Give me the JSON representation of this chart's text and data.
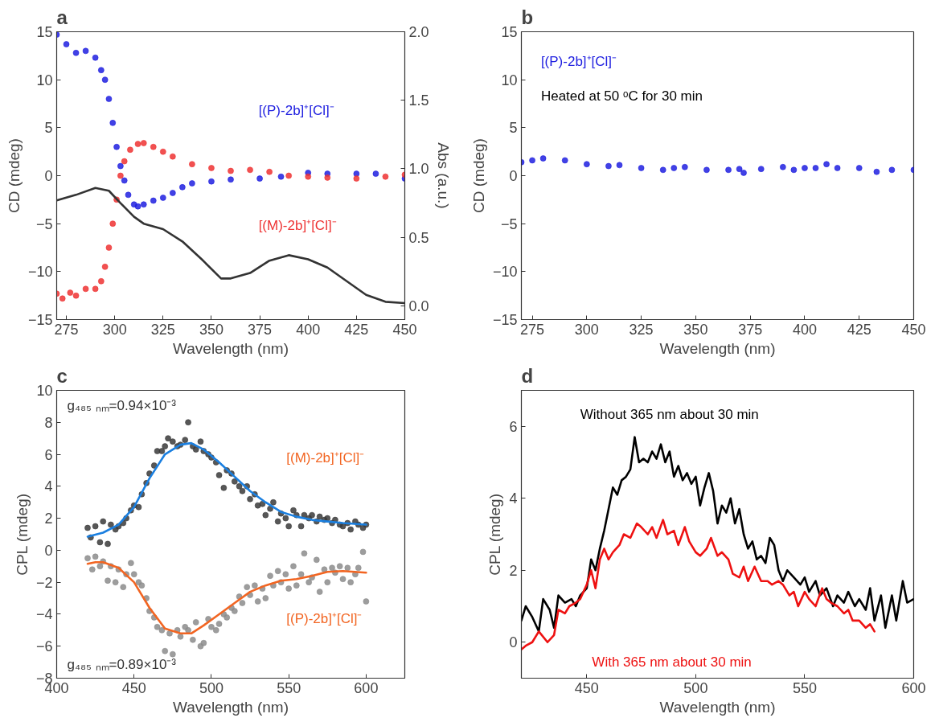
{
  "chart_data": [
    {
      "type": "scatter",
      "title": "a",
      "xlabel": "Wavelength (nm)",
      "ylabel": "CD (mdeg)",
      "y2label": "Abs (a.u.)",
      "xlim": [
        270,
        450
      ],
      "xticks": [
        275,
        300,
        325,
        350,
        375,
        400,
        425,
        450
      ],
      "ylim": [
        -15,
        15
      ],
      "yticks": [
        -15,
        -10,
        -5,
        0,
        5,
        10,
        15
      ],
      "y2lim": [
        -0.1,
        2.0
      ],
      "y2ticks": [
        {
          "value": 0,
          "label": "0.0"
        },
        0.5,
        {
          "value": 1,
          "label": "1.0"
        },
        1.5,
        {
          "value": 2,
          "label": "2.0"
        }
      ],
      "grid": false,
      "annotations": [
        "[(P)-2b]⁺[Cl]⁻",
        "[(M)-2b]⁺[Cl]⁻"
      ],
      "series": [
        {
          "color": "#2020e0",
          "marker": "circle",
          "x": [
            270,
            275,
            280,
            285,
            290,
            293,
            295,
            297,
            299,
            301,
            303,
            305,
            307,
            310,
            312,
            315,
            320,
            325,
            330,
            335,
            340,
            350,
            360,
            375,
            386,
            400,
            410,
            425,
            435,
            450
          ],
          "values": [
            14.7,
            13.7,
            12.8,
            13.0,
            12.3,
            11,
            10,
            8,
            5.5,
            3,
            1,
            -0.5,
            -2,
            -3,
            -3.2,
            -3,
            -2.6,
            -2.3,
            -1.8,
            -1.2,
            -0.8,
            -0.6,
            -0.4,
            -0.3,
            -0.1,
            0.3,
            0.2,
            0.2,
            0.2,
            -0.3
          ]
        },
        {
          "color": "#ee3333",
          "marker": "circle",
          "x": [
            270,
            273,
            277,
            280,
            285,
            290,
            293,
            295,
            297,
            299,
            301,
            303,
            305,
            308,
            312,
            315,
            320,
            325,
            330,
            340,
            350,
            360,
            370,
            380,
            390,
            400,
            410,
            425,
            440,
            450
          ],
          "values": [
            -12.3,
            -12.8,
            -12.2,
            -12.5,
            -11.8,
            -11.8,
            -11,
            -9.5,
            -7.5,
            -5,
            -2.5,
            0,
            1.5,
            2.7,
            3.3,
            3.4,
            3,
            2.5,
            2,
            1.2,
            0.8,
            0.5,
            0.6,
            0.4,
            0,
            -0.1,
            -0.2,
            -0.3,
            -0.1,
            0.1
          ]
        },
        {
          "type": "line",
          "axis": "y2",
          "color": "#333333",
          "x": [
            270,
            280,
            290,
            297,
            303,
            310,
            315,
            325,
            335,
            345,
            355,
            360,
            370,
            380,
            390,
            400,
            410,
            420,
            430,
            440,
            450
          ],
          "values": [
            0.77,
            0.81,
            0.86,
            0.84,
            0.75,
            0.65,
            0.6,
            0.56,
            0.47,
            0.34,
            0.2,
            0.2,
            0.24,
            0.33,
            0.37,
            0.34,
            0.28,
            0.18,
            0.08,
            0.03,
            0.02
          ]
        }
      ]
    },
    {
      "type": "scatter",
      "title": "b",
      "xlabel": "Wavelength (nm)",
      "ylabel": "CD (mdeg)",
      "xlim": [
        270,
        450
      ],
      "xticks": [
        275,
        300,
        325,
        350,
        375,
        400,
        425,
        450
      ],
      "ylim": [
        -15,
        15
      ],
      "yticks": [
        -15,
        -10,
        -5,
        0,
        5,
        10,
        15
      ],
      "marker": "circle",
      "grid": false,
      "annotations": [
        "[(P)-2b]⁺[Cl]⁻",
        "Heated at 50 ᵒC for 30 min"
      ],
      "series": [
        {
          "color": "#2020e0",
          "x": [
            270,
            275,
            280,
            290,
            300,
            310,
            315,
            325,
            335,
            340,
            345,
            355,
            365,
            370,
            372,
            380,
            390,
            395,
            400,
            405,
            410,
            415,
            425,
            433,
            440,
            450
          ],
          "values": [
            1.4,
            1.6,
            1.8,
            1.6,
            1.2,
            1.0,
            1.1,
            0.8,
            0.6,
            0.8,
            0.9,
            0.6,
            0.6,
            0.7,
            0.3,
            0.7,
            0.9,
            0.6,
            0.8,
            0.8,
            1.2,
            0.8,
            0.8,
            0.4,
            0.6,
            0.6
          ]
        }
      ]
    },
    {
      "type": "scatter",
      "title": "c",
      "xlabel": "Wavelength (nm)",
      "ylabel": "CPL (mdeg)",
      "xlim": [
        400,
        625
      ],
      "xticks": [
        400,
        450,
        500,
        550,
        600
      ],
      "ylim": [
        -8,
        10
      ],
      "yticks": [
        -8,
        -6,
        -4,
        -2,
        0,
        2,
        4,
        6,
        8,
        10
      ],
      "grid": false,
      "annotations": [
        "g₄₈₅ ₙₘ=0.94×10⁻³",
        "[(M)-2b]⁺[Cl]⁻",
        "[(P)-2b]⁺[Cl]⁻",
        "g₄₈₅ ₙₘ=0.89×10⁻³"
      ],
      "series": [
        {
          "color": "#3a3a3a",
          "marker": "circle",
          "x": [
            420,
            422,
            425,
            428,
            430,
            433,
            435,
            438,
            440,
            443,
            445,
            448,
            450,
            453,
            455,
            458,
            460,
            463,
            465,
            468,
            470,
            472,
            475,
            478,
            480,
            483,
            485,
            488,
            490,
            493,
            495,
            498,
            500,
            503,
            505,
            508,
            510,
            513,
            515,
            518,
            520,
            523,
            525,
            528,
            530,
            533,
            535,
            538,
            540,
            543,
            545,
            548,
            550,
            553,
            555,
            558,
            560,
            563,
            565,
            568,
            570,
            573,
            575,
            578,
            580,
            583,
            585,
            588,
            590,
            593,
            595,
            598,
            600
          ],
          "values": [
            1.4,
            0.8,
            1.5,
            0.5,
            1.8,
            0.4,
            1.6,
            1.3,
            1.5,
            1.7,
            2.0,
            2.5,
            2.8,
            2.7,
            3.5,
            4.2,
            4.8,
            5.3,
            6.2,
            6.2,
            6.5,
            7.0,
            6.8,
            6.5,
            6.6,
            6.9,
            8.0,
            6.5,
            6.3,
            6.8,
            6.2,
            6.0,
            5.8,
            5.5,
            4.7,
            3.9,
            5.0,
            4.8,
            4.3,
            4.0,
            3.7,
            4.0,
            3.2,
            3.5,
            2.8,
            2.9,
            2.2,
            2.6,
            3.0,
            1.8,
            2.3,
            2.0,
            1.5,
            2.5,
            2.2,
            1.5,
            2.2,
            2.0,
            2.2,
            1.8,
            2.1,
            1.9,
            2.0,
            1.7,
            1.9,
            1.6,
            1.5,
            1.7,
            1.3,
            1.8,
            1.6,
            1.4,
            1.6
          ]
        },
        {
          "type": "line",
          "color": "#1a7fe0",
          "x": [
            420,
            430,
            440,
            450,
            460,
            470,
            480,
            487,
            495,
            505,
            515,
            525,
            535,
            545,
            555,
            565,
            575,
            585,
            600
          ],
          "values": [
            0.85,
            1.1,
            1.6,
            2.7,
            4.5,
            6.0,
            6.6,
            6.7,
            6.3,
            5.5,
            4.6,
            3.7,
            3.0,
            2.4,
            2.1,
            1.9,
            1.8,
            1.7,
            1.6
          ]
        },
        {
          "color": "#8c8c8c",
          "marker": "circle",
          "x": [
            420,
            423,
            425,
            428,
            430,
            433,
            435,
            438,
            440,
            443,
            445,
            448,
            450,
            453,
            455,
            458,
            460,
            463,
            465,
            468,
            470,
            473,
            475,
            478,
            480,
            483,
            485,
            488,
            490,
            493,
            495,
            498,
            500,
            503,
            505,
            508,
            510,
            513,
            515,
            518,
            520,
            523,
            525,
            528,
            530,
            533,
            535,
            538,
            540,
            543,
            545,
            548,
            550,
            553,
            555,
            558,
            560,
            563,
            565,
            568,
            570,
            573,
            575,
            578,
            580,
            583,
            585,
            588,
            590,
            593,
            595,
            598,
            600
          ],
          "values": [
            -0.5,
            -1.2,
            -0.4,
            -1.0,
            -0.7,
            -1.9,
            -1.0,
            -2.0,
            -1.2,
            -2.3,
            -1.5,
            -0.8,
            -1.5,
            -2.0,
            -2.2,
            -3.0,
            -3.8,
            -4.2,
            -4.8,
            -5.0,
            -6.3,
            -5.2,
            -6.5,
            -5.0,
            -5.4,
            -4.8,
            -5.0,
            -5.6,
            -4.5,
            -6.0,
            -5.8,
            -4.3,
            -4.8,
            -5.0,
            -4.6,
            -4.0,
            -4.2,
            -3.6,
            -3.8,
            -2.9,
            -3.3,
            -2.3,
            -2.8,
            -2.2,
            -3.2,
            -2.4,
            -3.0,
            -1.6,
            -2.2,
            -1.3,
            -2.0,
            -1.5,
            -2.4,
            -1.0,
            -2.2,
            -1.5,
            -0.2,
            -2.0,
            -1.7,
            -0.6,
            -2.6,
            -1.2,
            -2.0,
            -1.1,
            -1.4,
            -1.0,
            -1.8,
            -1.1,
            -2.0,
            -1.5,
            -1.1,
            -0.1,
            -3.2
          ]
        },
        {
          "type": "line",
          "color": "#f26522",
          "x": [
            420,
            425,
            430,
            440,
            450,
            460,
            470,
            480,
            487,
            495,
            505,
            515,
            525,
            535,
            545,
            555,
            565,
            575,
            585,
            600
          ],
          "values": [
            -0.85,
            -0.75,
            -0.75,
            -1.1,
            -2.0,
            -3.6,
            -4.9,
            -5.2,
            -5.2,
            -4.7,
            -4.0,
            -3.3,
            -2.6,
            -2.2,
            -1.9,
            -1.8,
            -1.6,
            -1.35,
            -1.3,
            -1.4
          ]
        }
      ]
    },
    {
      "type": "line",
      "title": "d",
      "xlabel": "Wavelength (nm)",
      "ylabel": "CPL (mdeg)",
      "xlim": [
        420,
        600
      ],
      "xticks": [
        450,
        500,
        550,
        600
      ],
      "ylim": [
        -1,
        7
      ],
      "yticks": [
        0,
        2,
        4,
        6
      ],
      "line_style": "solid",
      "grid": false,
      "annotations": [
        "Without 365 nm about 30 min",
        "With 365 nm about 30 min"
      ],
      "series": [
        {
          "color": "#000000",
          "x": [
            420,
            422,
            425,
            428,
            430,
            433,
            435,
            437,
            440,
            443,
            445,
            447,
            450,
            452,
            454,
            456,
            458,
            460,
            462,
            464,
            466,
            468,
            470,
            472,
            474,
            476,
            478,
            480,
            482,
            484,
            486,
            488,
            490,
            492,
            494,
            496,
            498,
            500,
            502,
            504,
            506,
            508,
            510,
            512,
            514,
            516,
            518,
            520,
            522,
            524,
            526,
            528,
            530,
            532,
            534,
            536,
            538,
            540,
            542,
            545,
            548,
            550,
            552,
            555,
            557,
            560,
            563,
            565,
            568,
            570,
            573,
            575,
            578,
            580,
            582,
            585,
            587,
            590,
            592,
            595,
            597,
            600
          ],
          "values": [
            0.6,
            1.0,
            0.7,
            0.3,
            1.2,
            0.9,
            0.4,
            1.3,
            1.1,
            1.2,
            1.0,
            1.3,
            1.5,
            2.3,
            2.0,
            2.6,
            3.1,
            3.7,
            4.3,
            4.1,
            4.5,
            4.6,
            4.8,
            5.7,
            5.0,
            5.1,
            5.0,
            5.3,
            5.1,
            5.5,
            5.0,
            5.3,
            4.6,
            4.9,
            4.5,
            4.7,
            4.4,
            4.6,
            3.8,
            4.3,
            4.7,
            4.2,
            3.3,
            3.8,
            3.6,
            4.0,
            3.3,
            3.7,
            3.0,
            2.6,
            2.8,
            2.3,
            2.4,
            2.2,
            2.9,
            2.7,
            2.0,
            1.7,
            2.0,
            1.8,
            1.6,
            1.8,
            1.4,
            1.7,
            1.3,
            1.5,
            1.0,
            1.3,
            1.1,
            1.4,
            1.0,
            1.2,
            0.9,
            1.5,
            0.6,
            1.3,
            0.4,
            1.3,
            0.6,
            1.7,
            1.1,
            1.2
          ]
        },
        {
          "color": "#ee1111",
          "x": [
            420,
            422,
            425,
            428,
            432,
            435,
            437,
            440,
            442,
            445,
            447,
            450,
            452,
            454,
            456,
            458,
            460,
            462,
            465,
            467,
            470,
            473,
            475,
            478,
            480,
            482,
            485,
            487,
            490,
            492,
            495,
            497,
            500,
            502,
            505,
            507,
            510,
            512,
            515,
            517,
            520,
            522,
            524,
            527,
            530,
            533,
            535,
            538,
            540,
            543,
            545,
            547,
            550,
            552,
            555,
            558,
            560,
            562,
            565,
            568,
            570,
            572,
            575,
            578,
            580,
            582
          ],
          "values": [
            -0.2,
            -0.1,
            0.0,
            0.3,
            0.0,
            0.2,
            0.9,
            0.8,
            1.0,
            1.1,
            1.2,
            1.6,
            2.0,
            1.5,
            2.3,
            2.6,
            2.3,
            2.5,
            2.7,
            3.0,
            2.9,
            3.3,
            3.2,
            3.0,
            3.2,
            2.9,
            3.4,
            3.0,
            3.1,
            2.7,
            3.2,
            2.8,
            2.5,
            2.4,
            2.6,
            2.9,
            2.4,
            2.5,
            2.3,
            1.9,
            1.8,
            2.1,
            1.7,
            2.1,
            1.7,
            1.7,
            1.6,
            1.7,
            1.6,
            1.3,
            1.4,
            1.0,
            1.4,
            1.2,
            1.0,
            1.5,
            1.2,
            1.1,
            1.0,
            0.8,
            0.9,
            0.6,
            0.6,
            0.4,
            0.5,
            0.3
          ]
        }
      ]
    }
  ]
}
